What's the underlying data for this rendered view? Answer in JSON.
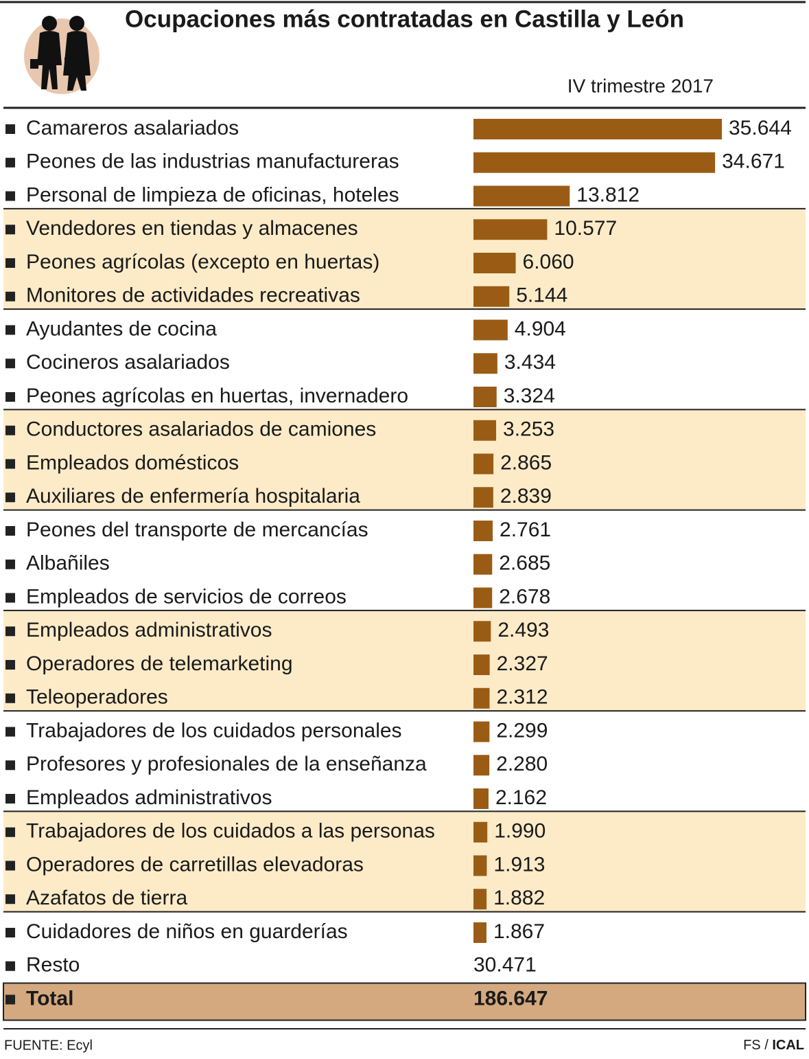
{
  "chart_data": {
    "type": "bar",
    "orientation": "horizontal",
    "title": "Ocupaciones más contratadas en Castilla y León",
    "subtitle": "IV trimestre 2017",
    "color": "#9a5c15",
    "categories": [
      "Camareros asalariados",
      "Peones de las industrias manufactureras",
      "Personal de limpieza de oficinas, hoteles",
      "Vendedores en tiendas y almacenes",
      "Peones agrícolas (excepto en huertas)",
      "Monitores de actividades recreativas",
      "Ayudantes de cocina",
      "Cocineros asalariados",
      "Peones agrícolas en huertas, invernadero",
      "Conductores asalariados de camiones",
      "Empleados domésticos",
      "Auxiliares de enfermería hospitalaria",
      "Peones del transporte de mercancías",
      "Albañiles",
      "Empleados de servicios de correos",
      "Empleados administrativos",
      "Operadores de telemarketing",
      "Teleoperadores",
      "Trabajadores de los cuidados personales",
      "Profesores y profesionales de la enseñanza",
      "Empleados administrativos",
      "Trabajadores de los cuidados a las personas",
      "Operadores de carretillas elevadoras",
      "Azafatos de tierra",
      "Cuidadores de niños en guarderías"
    ],
    "values": [
      35644,
      34671,
      13812,
      10577,
      6060,
      5144,
      4904,
      3434,
      3324,
      3253,
      2865,
      2839,
      2761,
      2685,
      2678,
      2493,
      2327,
      2312,
      2299,
      2280,
      2162,
      1990,
      1913,
      1882,
      1867
    ],
    "value_labels": [
      "35.644",
      "34.671",
      "13.812",
      "10.577",
      "6.060",
      "5.144",
      "4.904",
      "3.434",
      "3.324",
      "3.253",
      "2.865",
      "2.839",
      "2.761",
      "2.685",
      "2.678",
      "2.493",
      "2.327",
      "2.312",
      "2.299",
      "2.280",
      "2.162",
      "1.990",
      "1.913",
      "1.882",
      "1.867"
    ],
    "rest": {
      "label": "Resto",
      "value": 30471,
      "value_label": "30.471"
    },
    "total": {
      "label": "Total",
      "value": 186647,
      "value_label": "186.647"
    },
    "source": "FUENTE: Ecyl",
    "credit": "FS /",
    "credit_agency": "ICAL"
  }
}
